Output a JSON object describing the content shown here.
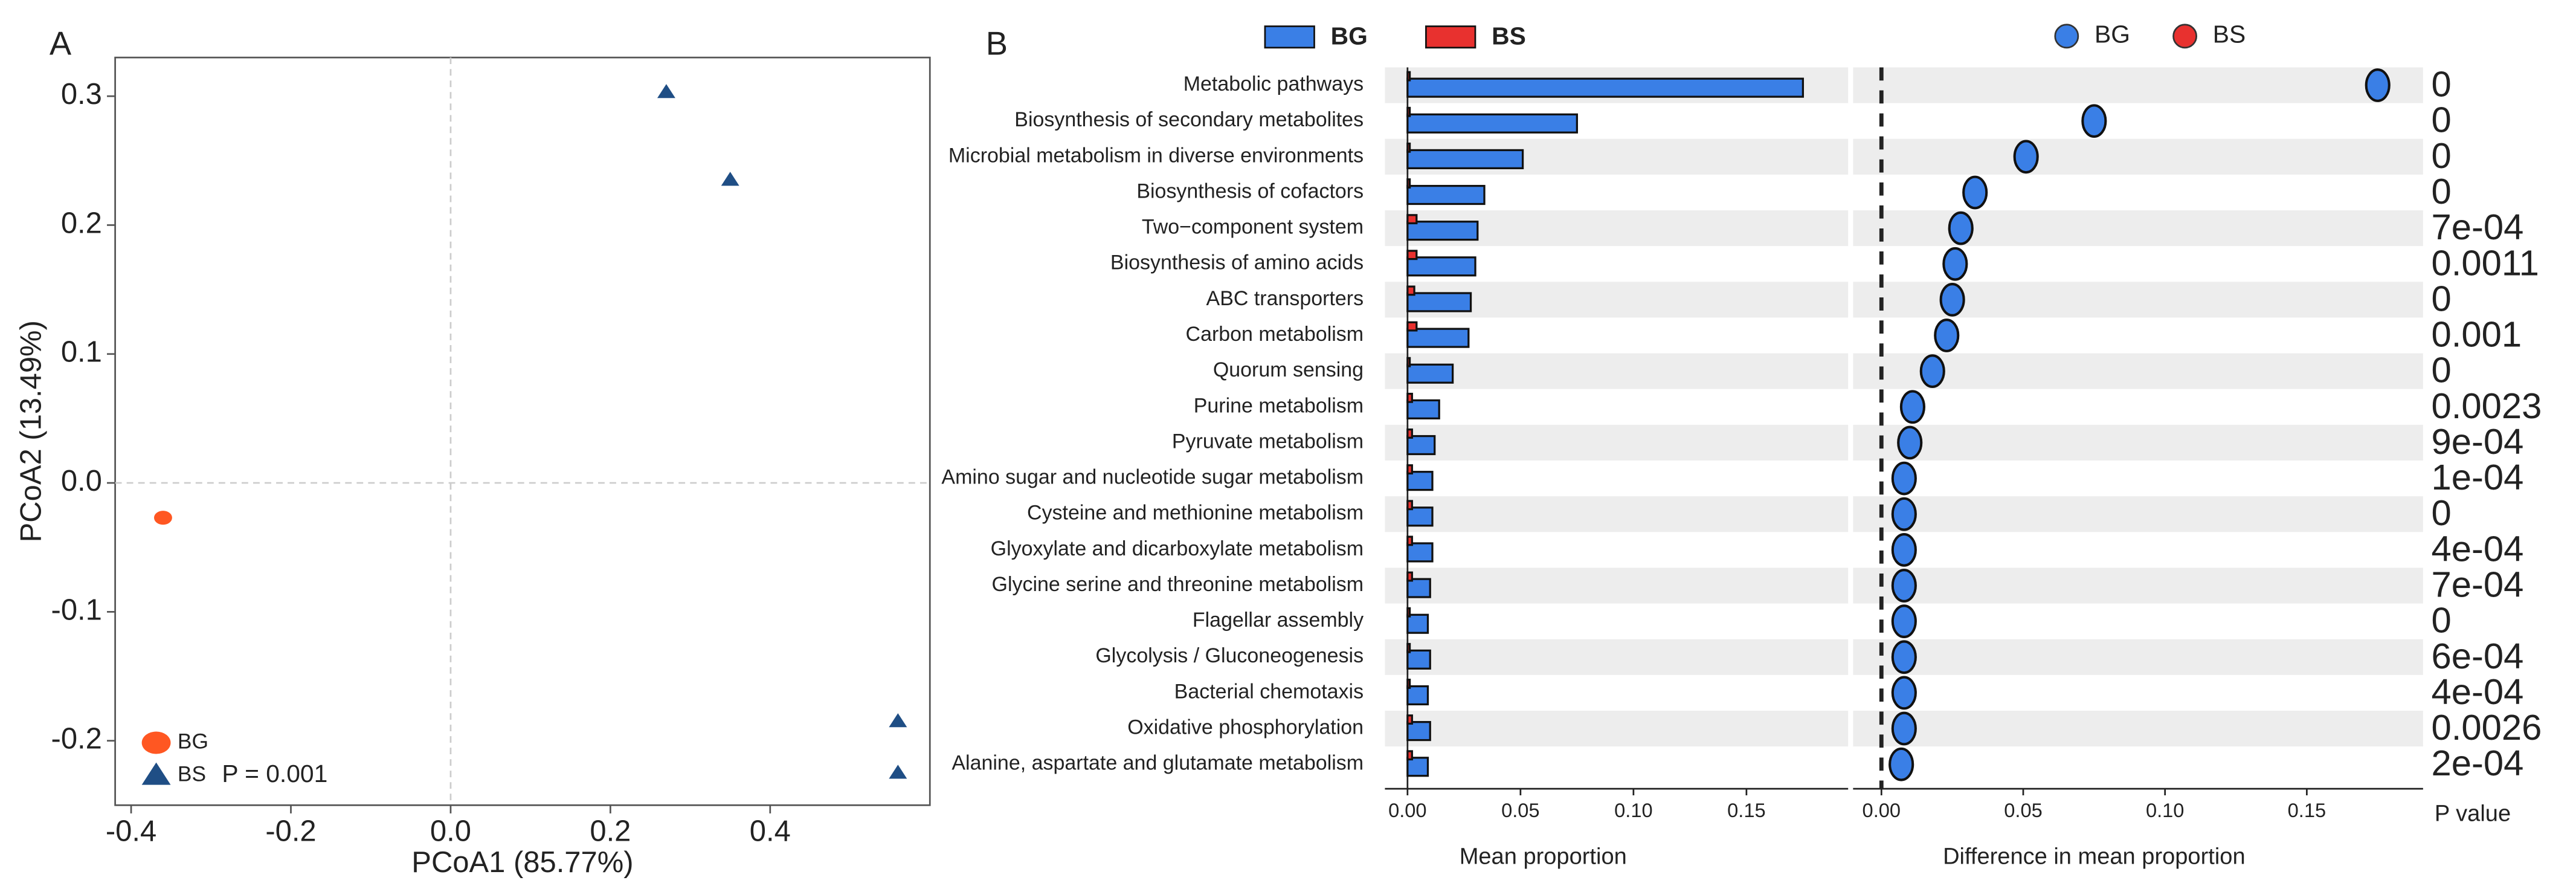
{
  "chart_data": [
    {
      "type": "scatter",
      "panel": "A",
      "xlabel": "PCoA1 (85.77%)",
      "ylabel": "PCoA2 (13.49%)",
      "xlim": [
        -0.42,
        0.6
      ],
      "ylim": [
        -0.25,
        0.33
      ],
      "xticks": [
        -0.4,
        -0.2,
        {
          "value": 0,
          "label": "0.0"
        },
        0.2,
        0.4
      ],
      "yticks": [
        -0.2,
        -0.1,
        {
          "value": 0,
          "label": "0.0"
        },
        0.1,
        0.2,
        0.3
      ],
      "zero_lines": true,
      "legend": "lower left",
      "annotation": "P = 0.001",
      "series": [
        {
          "name": "BG",
          "color": "#ff5722",
          "marker": "circle",
          "x": [
            -0.36
          ],
          "y": [
            -0.027
          ]
        },
        {
          "name": "BS",
          "color": "#1f4e85",
          "marker": "triangle",
          "x": [
            0.27,
            0.35,
            0.56,
            0.56
          ],
          "y": [
            0.303,
            0.235,
            -0.185,
            -0.225
          ]
        }
      ]
    },
    {
      "type": "bar",
      "panel": "B",
      "orientation": "horizontal",
      "xlabel": "Mean proportion",
      "xlim": [
        -0.01,
        0.195
      ],
      "xticks": [
        {
          "value": 0,
          "label": "0.00"
        },
        0.05,
        {
          "value": 0.1,
          "label": "0.10"
        },
        0.15
      ],
      "legend": "top",
      "banded": true,
      "categories": [
        "Metabolic pathways",
        "Biosynthesis of secondary metabolites",
        "Microbial metabolism in diverse environments",
        "Biosynthesis of cofactors",
        "Two−component system",
        "Biosynthesis of amino acids",
        "ABC transporters",
        "Carbon metabolism",
        "Quorum sensing",
        "Purine metabolism",
        "Pyruvate metabolism",
        "Amino sugar and nucleotide sugar metabolism",
        "Cysteine and methionine metabolism",
        "Glyoxylate and dicarboxylate metabolism",
        "Glycine      serine and threonine metabolism",
        "Flagellar assembly",
        "Glycolysis / Gluconeogenesis",
        "Bacterial chemotaxis",
        "Oxidative phosphorylation",
        "Alanine, aspartate and glutamate metabolism"
      ],
      "series": [
        {
          "name": "BG",
          "color": "#3a7fe6",
          "values": [
            0.175,
            0.075,
            0.051,
            0.034,
            0.031,
            0.03,
            0.028,
            0.027,
            0.02,
            0.014,
            0.012,
            0.011,
            0.011,
            0.011,
            0.01,
            0.009,
            0.01,
            0.009,
            0.01,
            0.009
          ]
        },
        {
          "name": "BS",
          "color": "#e8312f",
          "values": [
            0.001,
            0.001,
            0.001,
            0.001,
            0.004,
            0.004,
            0.003,
            0.004,
            0.001,
            0.002,
            0.002,
            0.002,
            0.002,
            0.002,
            0.002,
            0.001,
            0.001,
            0.001,
            0.002,
            0.002
          ]
        }
      ]
    },
    {
      "type": "dot",
      "xlabel": "Difference in mean proportion",
      "p_header": "P value",
      "xlim": [
        -0.01,
        0.191
      ],
      "xticks": [
        {
          "value": 0,
          "label": "0.00"
        },
        0.05,
        {
          "value": 0.1,
          "label": "0.10"
        },
        0.15
      ],
      "legend": "top",
      "banded": true,
      "series": [
        {
          "name": "BG",
          "color": "#3a7fe6",
          "values": [
            0.175,
            0.075,
            0.051,
            0.033,
            0.028,
            0.026,
            0.025,
            0.023,
            0.018,
            0.011,
            0.01,
            0.008,
            0.008,
            0.008,
            0.008,
            0.008,
            0.008,
            0.008,
            0.008,
            0.007
          ]
        },
        {
          "name": "BS",
          "color": "#e8312f",
          "values": [
            null,
            null,
            null,
            null,
            null,
            null,
            null,
            null,
            null,
            null,
            null,
            null,
            null,
            null,
            null,
            null,
            null,
            null,
            null,
            null
          ]
        }
      ],
      "p_values": [
        "0",
        "0",
        "0",
        "0",
        "7e-04",
        "0.0011",
        "0",
        "0.001",
        "0",
        "0.0023",
        "9e-04",
        "1e-04",
        "0",
        "4e-04",
        "7e-04",
        "0",
        "6e-04",
        "4e-04",
        "0.0026",
        "2e-04"
      ]
    }
  ]
}
